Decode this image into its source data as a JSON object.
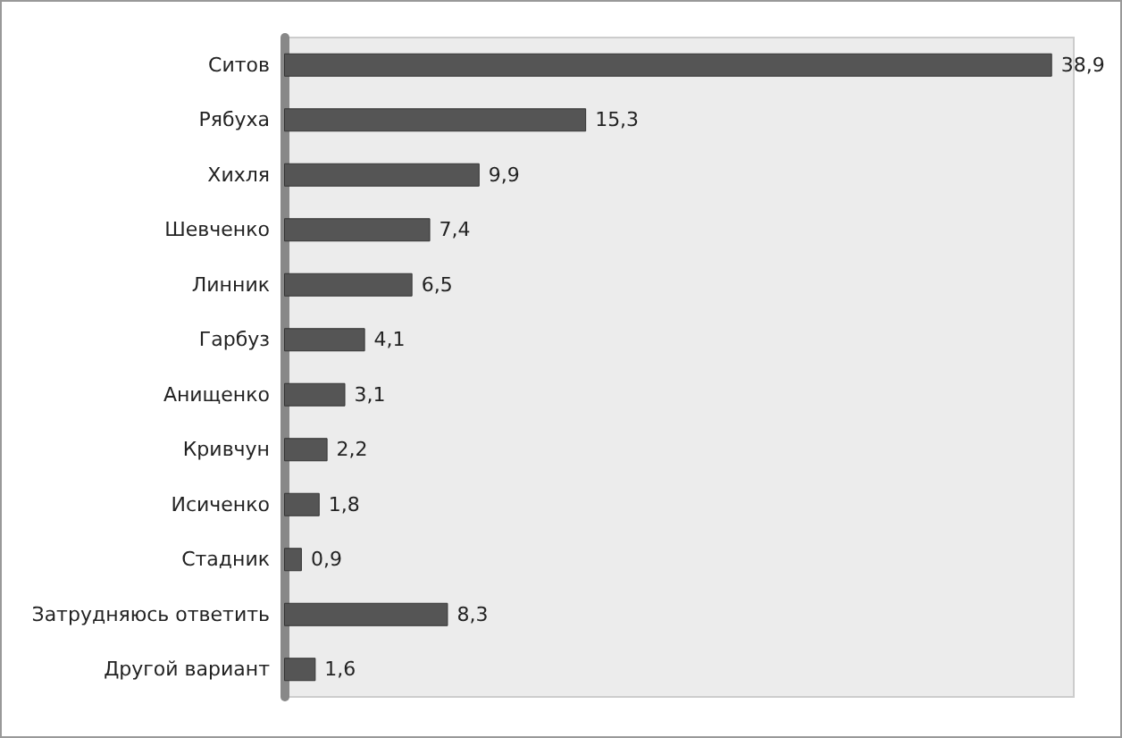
{
  "chart_data": {
    "type": "bar",
    "orientation": "horizontal",
    "categories": [
      "Ситов",
      "Рябуха",
      "Хихля",
      "Шевченко",
      "Линник",
      "Гарбуз",
      "Анищенко",
      "Кривчун",
      "Исиченко",
      "Стадник",
      "Затрудняюсь ответить",
      "Другой вариант"
    ],
    "values": [
      38.9,
      15.3,
      9.9,
      7.4,
      6.5,
      4.1,
      3.1,
      2.2,
      1.8,
      0.9,
      8.3,
      1.6
    ],
    "value_labels": [
      "38,9",
      "15,3",
      "9,9",
      "7,4",
      "6,5",
      "4,1",
      "3,1",
      "2,2",
      "1,8",
      "0,9",
      "8,3",
      "1,6"
    ],
    "color": "#555555"
  }
}
